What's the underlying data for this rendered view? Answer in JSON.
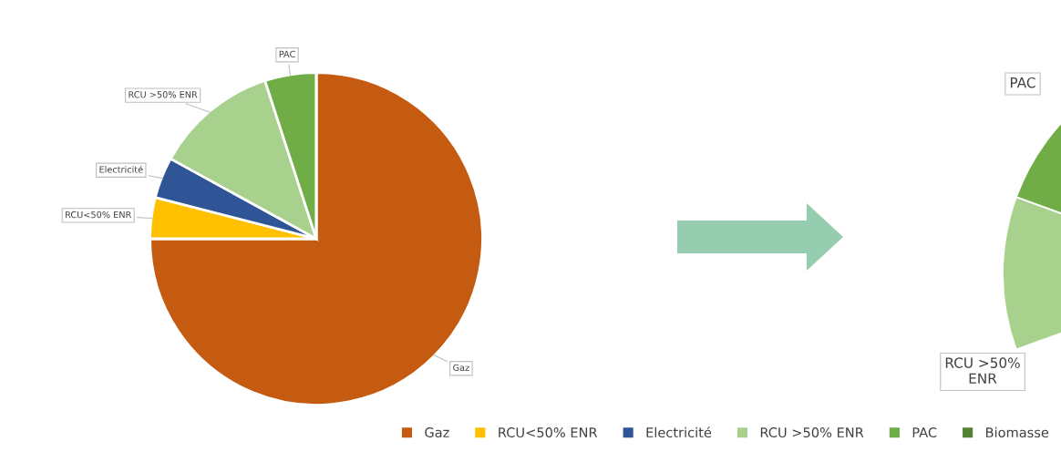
{
  "chart_data": {
    "type": "pie",
    "categories": [
      "Gaz",
      "RCU<50% ENR",
      "Electricité",
      "RCU >50% ENR",
      "PAC",
      "Biomasse"
    ],
    "values": [
      75,
      4,
      4,
      12,
      5,
      0
    ],
    "colors": [
      "#c55a11",
      "#ffc000",
      "#2f5597",
      "#a9d18e",
      "#70ad47",
      "#548235"
    ],
    "annotations": [
      "PAC",
      "RCU >50%\nENR"
    ],
    "legend": "bottom right"
  }
}
